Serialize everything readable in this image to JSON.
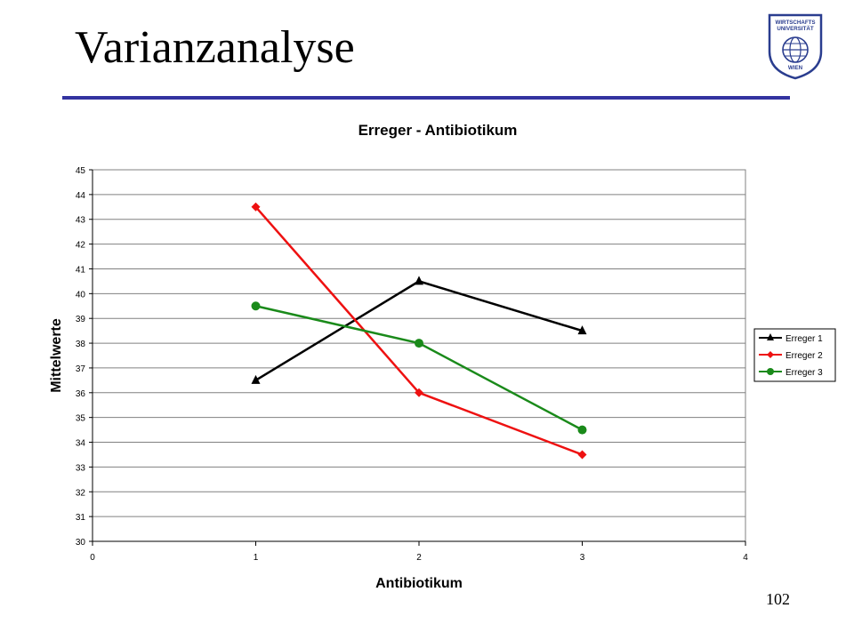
{
  "slide": {
    "title": "Varianzanalyse",
    "page_number": "102"
  },
  "logo": {
    "line1": "WIRTSCHAFTS",
    "line2": "UNIVERSITÄT",
    "line3": "WIEN",
    "color": "#2a3d8f"
  },
  "chart_data": {
    "type": "line",
    "title": "Erreger - Antibiotikum",
    "xlabel": "Antibiotikum",
    "ylabel": "Mittelwerte",
    "xlim": [
      0,
      4
    ],
    "ylim": [
      30,
      45
    ],
    "x_ticks": [
      0,
      1,
      2,
      3,
      4
    ],
    "y_ticks": [
      30,
      31,
      32,
      33,
      34,
      35,
      36,
      37,
      38,
      39,
      40,
      41,
      42,
      43,
      44,
      45
    ],
    "grid": "horizontal",
    "legend_position": "right",
    "series": [
      {
        "name": "Erreger 1",
        "x": [
          1,
          2,
          3
        ],
        "y": [
          36.5,
          40.5,
          38.5
        ],
        "color": "#000000",
        "marker": "triangle"
      },
      {
        "name": "Erreger 2",
        "x": [
          1,
          2,
          3
        ],
        "y": [
          43.5,
          36,
          33.5
        ],
        "color": "#ee1111",
        "marker": "diamond"
      },
      {
        "name": "Erreger 3",
        "x": [
          1,
          2,
          3
        ],
        "y": [
          39.5,
          38,
          34.5
        ],
        "color": "#1a8a1a",
        "marker": "circle"
      }
    ]
  }
}
